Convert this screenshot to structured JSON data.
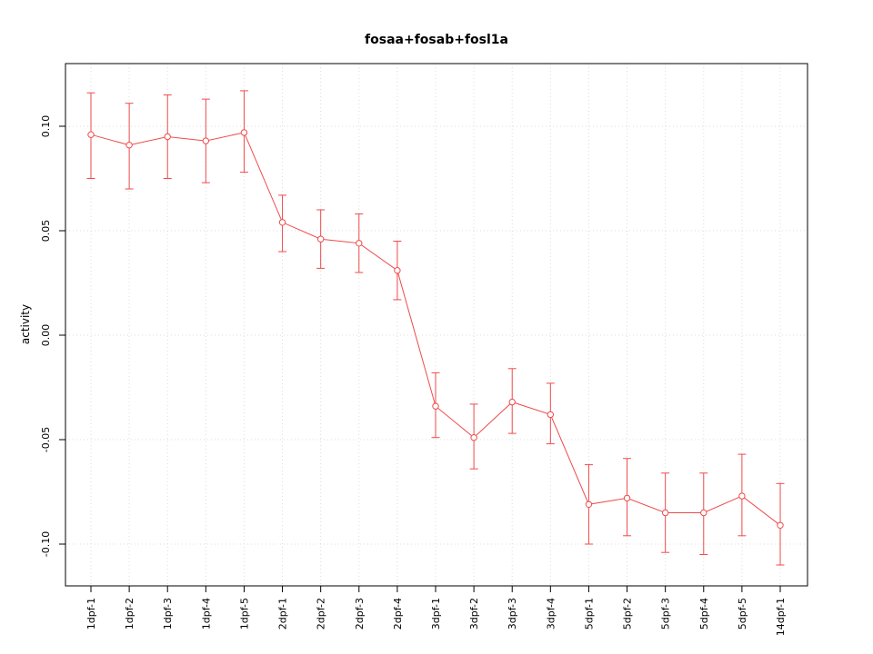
{
  "figure": {
    "background": "#ffffff"
  },
  "chart_data": {
    "type": "line",
    "title": "fosaa+fosab+fosl1a",
    "xlabel": "",
    "ylabel": "activity",
    "categories": [
      "1dpf-1",
      "1dpf-2",
      "1dpf-3",
      "1dpf-4",
      "1dpf-5",
      "2dpf-1",
      "2dpf-2",
      "2dpf-3",
      "2dpf-4",
      "3dpf-1",
      "3dpf-2",
      "3dpf-3",
      "3dpf-4",
      "5dpf-1",
      "5dpf-2",
      "5dpf-3",
      "5dpf-4",
      "5dpf-5",
      "14dpf-1"
    ],
    "series": [
      {
        "name": "activity",
        "values": [
          0.096,
          0.091,
          0.095,
          0.093,
          0.097,
          0.054,
          0.046,
          0.044,
          0.031,
          -0.034,
          -0.049,
          -0.032,
          -0.038,
          -0.081,
          -0.078,
          -0.085,
          -0.085,
          -0.077,
          -0.091
        ],
        "lower": [
          0.075,
          0.07,
          0.075,
          0.073,
          0.078,
          0.04,
          0.032,
          0.03,
          0.017,
          -0.049,
          -0.064,
          -0.047,
          -0.052,
          -0.1,
          -0.096,
          -0.104,
          -0.105,
          -0.096,
          -0.11
        ],
        "upper": [
          0.116,
          0.111,
          0.115,
          0.113,
          0.117,
          0.067,
          0.06,
          0.058,
          0.045,
          -0.018,
          -0.033,
          -0.016,
          -0.023,
          -0.062,
          -0.059,
          -0.066,
          -0.066,
          -0.057,
          -0.071
        ]
      }
    ],
    "error_bars": true,
    "marker": "open-circle",
    "ylim": [
      -0.12,
      0.13
    ],
    "yticks": {
      "values": [
        -0.1,
        -0.05,
        0.0,
        0.05,
        0.1
      ],
      "labels": [
        "-0.10",
        "-0.05",
        "0.00",
        "0.05",
        "0.10"
      ]
    },
    "grid": true,
    "legend": "none",
    "colors": {
      "series": "#ee4b4b",
      "grid": "#dcdcdc",
      "axis": "#000000",
      "text": "#000000"
    }
  }
}
